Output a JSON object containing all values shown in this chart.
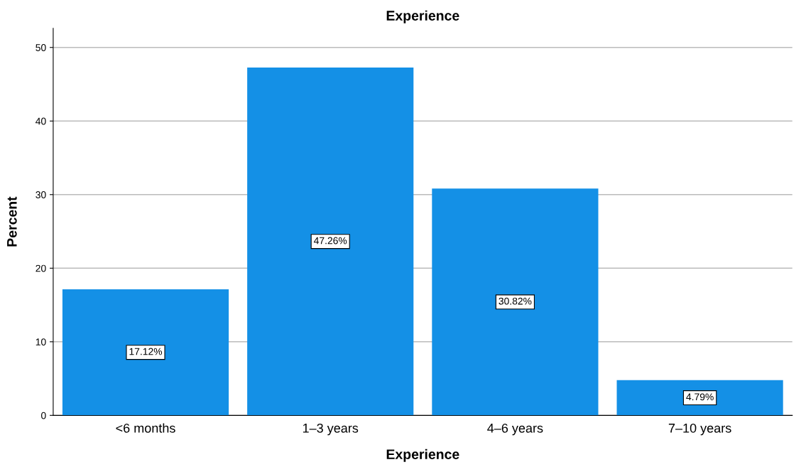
{
  "chart_data": {
    "type": "bar",
    "title": "Experience",
    "xlabel": "Experience",
    "ylabel": "Percent",
    "categories": [
      "<6 months",
      "1–3 years",
      "4–6 years",
      "7–10 years"
    ],
    "values": [
      17.12,
      47.26,
      30.82,
      4.79
    ],
    "value_labels": [
      "17.12%",
      "47.26%",
      "30.82%",
      "4.79%"
    ],
    "color": "#1490e6",
    "ylim": [
      0,
      52.6
    ],
    "yticks": [
      0,
      10,
      20,
      30,
      40,
      50
    ],
    "grid": "y",
    "legend": false
  }
}
